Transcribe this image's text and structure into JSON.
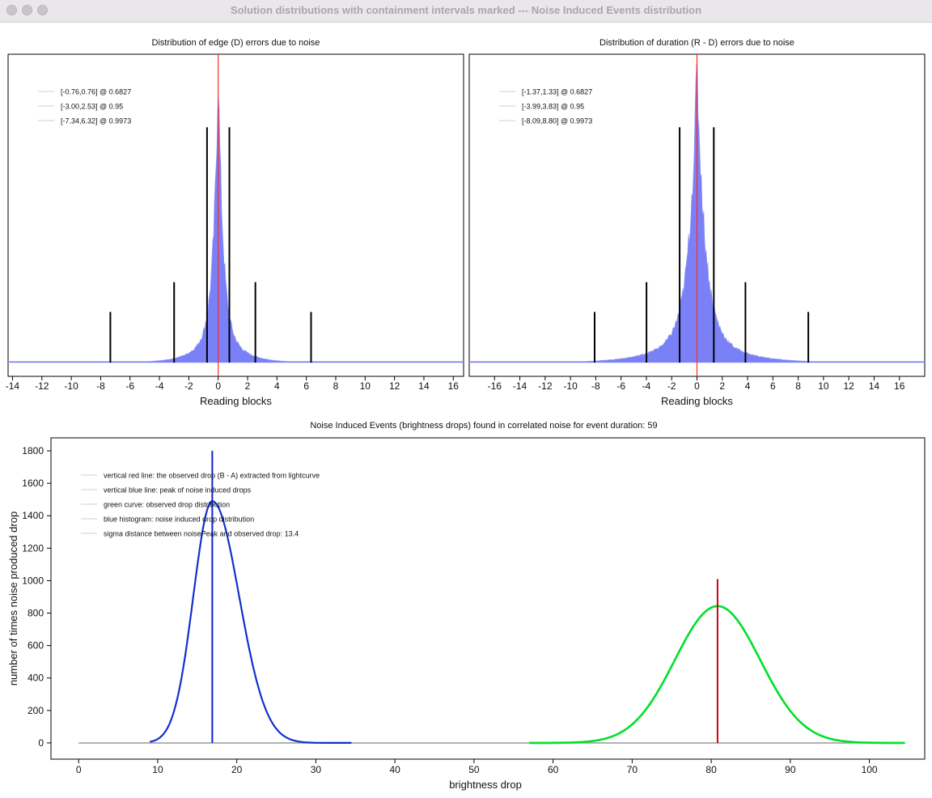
{
  "window": {
    "title": "Solution distributions with containment intervals marked --- Noise Induced Events distribution"
  },
  "chart_data": [
    {
      "type": "bar",
      "title": "Distribution of edge (D) errors due to noise",
      "xlabel": "Reading blocks",
      "ylabel": "",
      "xlim": [
        -14.3,
        16.7
      ],
      "x_ticks": [
        -14,
        -12,
        -10,
        -8,
        -6,
        -4,
        -2,
        0,
        2,
        4,
        6,
        8,
        10,
        12,
        14,
        16
      ],
      "grid": false,
      "legend_position": "top-left",
      "histogram": {
        "center": 0,
        "scale": 0.32,
        "color": "#6b73f5"
      },
      "vertical_marker": {
        "x": 0,
        "color": "#ff2a2a"
      },
      "interval_marker_heights": {
        "0.6827": 0.79,
        "0.95": 0.27,
        "0.9973": 0.17
      },
      "intervals": [
        {
          "label": "[-0.76,0.76] @ 0.6827",
          "low": -0.76,
          "high": 0.76,
          "level": 0.6827
        },
        {
          "label": "[-3.00,2.53] @ 0.95",
          "low": -3.0,
          "high": 2.53,
          "level": 0.95
        },
        {
          "label": "[-7.34,6.32] @ 0.9973",
          "low": -7.34,
          "high": 6.32,
          "level": 0.9973
        }
      ]
    },
    {
      "type": "bar",
      "title": "Distribution of duration (R - D) errors due to noise",
      "xlabel": "Reading blocks",
      "ylabel": "",
      "xlim": [
        -18,
        18
      ],
      "x_ticks": [
        -16,
        -14,
        -12,
        -10,
        -8,
        -6,
        -4,
        -2,
        0,
        2,
        4,
        6,
        8,
        10,
        12,
        14,
        16
      ],
      "grid": false,
      "legend_position": "top-left",
      "histogram": {
        "center": 0,
        "scale": 0.62,
        "color": "#6b73f5"
      },
      "vertical_marker": {
        "x": 0,
        "color": "#ff2a2a"
      },
      "interval_marker_heights": {
        "0.6827": 0.79,
        "0.95": 0.27,
        "0.9973": 0.17
      },
      "intervals": [
        {
          "label": "[-1.37,1.33] @ 0.6827",
          "low": -1.37,
          "high": 1.33,
          "level": 0.6827
        },
        {
          "label": "[-3.99,3.83] @ 0.95",
          "low": -3.99,
          "high": 3.83,
          "level": 0.95
        },
        {
          "label": "[-8.09,8.80] @ 0.9973",
          "low": -8.09,
          "high": 8.8,
          "level": 0.9973
        }
      ]
    },
    {
      "type": "line",
      "title": "Noise Induced Events (brightness drops) found in correlated noise for event duration: 59",
      "xlabel": "brightness drop",
      "ylabel": "number of times noise produced drop",
      "xlim": [
        -3.5,
        107
      ],
      "ylim": [
        -100,
        1880
      ],
      "x_ticks": [
        0,
        10,
        20,
        30,
        40,
        50,
        60,
        70,
        80,
        90,
        100
      ],
      "y_ticks": [
        0,
        200,
        400,
        600,
        800,
        1000,
        1200,
        1400,
        1600,
        1800
      ],
      "grid": false,
      "legend_position": "top-left",
      "baseline": {
        "x": [
          0,
          104.5
        ],
        "y": 0,
        "color": "#999999"
      },
      "series": [
        {
          "kind": "noise_histogram",
          "color": "#1030d0",
          "x_range": [
            9,
            34.5
          ],
          "peak_x": 16.9,
          "peak_y": 1490,
          "sigma_left": 2.4,
          "sigma_right": 3.4
        },
        {
          "kind": "observed_gaussian",
          "color": "#00e02a",
          "x_range": [
            57,
            104.5
          ],
          "mean": 80.8,
          "sigma": 5.4,
          "amplitude": 843
        }
      ],
      "vertical_lines": [
        {
          "x": 16.9,
          "y_top": 1800,
          "color": "#1020d8"
        },
        {
          "x": 80.8,
          "y_top": 1010,
          "color": "#cc0010"
        }
      ],
      "legend": [
        "vertical red line: the observed drop (B - A) extracted from lightcurve",
        "vertical blue line: peak of noise induced drops",
        "green curve: observed drop distribution",
        "blue histogram: noise induced drop distribution",
        "sigma distance between noisePeak and observed drop: 13.4"
      ]
    }
  ]
}
